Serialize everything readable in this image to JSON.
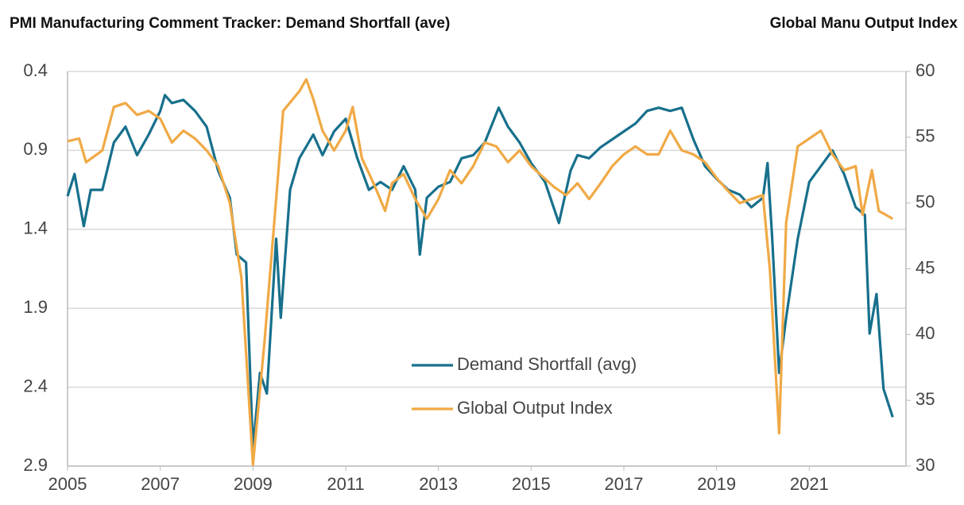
{
  "chart_data": {
    "type": "line",
    "ylabel": "PMI Manufacturing  Comment Tracker: Demand Shortfall (ave)",
    "y2label": "Global Manu  Output Index",
    "xlim": [
      2005,
      2023
    ],
    "xticks": [
      2005,
      2007,
      2009,
      2011,
      2013,
      2015,
      2017,
      2019,
      2021
    ],
    "ylim": [
      0.4,
      2.9
    ],
    "yticks": [
      0.4,
      0.9,
      1.4,
      1.9,
      2.4,
      2.9
    ],
    "y_inverted": true,
    "y2lim": [
      30,
      60
    ],
    "y2ticks": [
      30,
      35,
      40,
      45,
      50,
      55,
      60
    ],
    "grid": true,
    "legend": "lower center",
    "series": [
      {
        "name": "Demand Shortfall (avg)",
        "color": "#17708c",
        "axis": "y",
        "x": [
          2005.0,
          2005.15,
          2005.35,
          2005.5,
          2005.75,
          2006.0,
          2006.25,
          2006.5,
          2006.75,
          2007.0,
          2007.1,
          2007.25,
          2007.5,
          2007.75,
          2008.0,
          2008.25,
          2008.5,
          2008.65,
          2008.85,
          2009.0,
          2009.15,
          2009.3,
          2009.5,
          2009.6,
          2009.8,
          2010.0,
          2010.3,
          2010.5,
          2010.75,
          2011.0,
          2011.25,
          2011.5,
          2011.75,
          2012.0,
          2012.25,
          2012.5,
          2012.6,
          2012.75,
          2013.0,
          2013.25,
          2013.5,
          2013.75,
          2014.0,
          2014.3,
          2014.5,
          2014.75,
          2015.0,
          2015.3,
          2015.6,
          2015.85,
          2016.0,
          2016.25,
          2016.5,
          2016.75,
          2017.0,
          2017.25,
          2017.5,
          2017.75,
          2018.0,
          2018.25,
          2018.5,
          2018.75,
          2019.0,
          2019.25,
          2019.5,
          2019.75,
          2020.0,
          2020.1,
          2020.2,
          2020.35,
          2020.5,
          2020.75,
          2021.0,
          2021.25,
          2021.5,
          2021.75,
          2022.0,
          2022.2,
          2022.3,
          2022.45,
          2022.6,
          2022.8
        ],
        "values": [
          1.19,
          1.05,
          1.38,
          1.15,
          1.15,
          0.85,
          0.75,
          0.93,
          0.8,
          0.65,
          0.55,
          0.6,
          0.58,
          0.65,
          0.75,
          1.03,
          1.2,
          1.56,
          1.61,
          2.79,
          2.31,
          2.44,
          1.46,
          1.96,
          1.15,
          0.95,
          0.8,
          0.93,
          0.78,
          0.7,
          0.95,
          1.15,
          1.1,
          1.15,
          1.0,
          1.15,
          1.56,
          1.2,
          1.13,
          1.1,
          0.95,
          0.93,
          0.85,
          0.63,
          0.75,
          0.85,
          0.98,
          1.1,
          1.36,
          1.03,
          0.93,
          0.95,
          0.88,
          0.83,
          0.78,
          0.73,
          0.65,
          0.63,
          0.65,
          0.63,
          0.83,
          1.0,
          1.08,
          1.15,
          1.18,
          1.26,
          1.2,
          0.98,
          1.46,
          2.31,
          1.96,
          1.46,
          1.1,
          1.0,
          0.9,
          1.05,
          1.26,
          1.31,
          2.06,
          1.81,
          2.41,
          2.59
        ]
      },
      {
        "name": "Global Output Index",
        "color": "#f0a945",
        "axis": "y2",
        "x": [
          2005.0,
          2005.25,
          2005.4,
          2005.75,
          2006.0,
          2006.25,
          2006.5,
          2006.75,
          2007.0,
          2007.25,
          2007.5,
          2007.75,
          2008.0,
          2008.25,
          2008.5,
          2008.75,
          2009.0,
          2009.25,
          2009.5,
          2009.65,
          2010.0,
          2010.15,
          2010.3,
          2010.5,
          2010.75,
          2011.0,
          2011.15,
          2011.35,
          2011.6,
          2011.85,
          2012.0,
          2012.25,
          2012.5,
          2012.75,
          2013.0,
          2013.25,
          2013.5,
          2013.75,
          2014.0,
          2014.25,
          2014.5,
          2014.75,
          2015.0,
          2015.5,
          2015.75,
          2016.0,
          2016.25,
          2016.5,
          2016.75,
          2017.0,
          2017.25,
          2017.5,
          2017.75,
          2018.0,
          2018.25,
          2018.5,
          2018.75,
          2019.0,
          2019.25,
          2019.5,
          2019.75,
          2020.0,
          2020.15,
          2020.35,
          2020.5,
          2020.75,
          2021.0,
          2021.25,
          2021.5,
          2021.75,
          2022.0,
          2022.15,
          2022.35,
          2022.5,
          2022.8
        ],
        "values": [
          54.7,
          54.9,
          53.1,
          54.0,
          57.3,
          57.6,
          56.7,
          57.0,
          56.4,
          54.6,
          55.5,
          54.9,
          54.0,
          52.8,
          50.0,
          44.3,
          30.1,
          39.5,
          50.3,
          57.0,
          58.5,
          59.4,
          57.9,
          55.5,
          54.0,
          55.5,
          57.3,
          53.4,
          51.5,
          49.4,
          51.5,
          52.2,
          50.3,
          48.8,
          50.3,
          52.5,
          51.5,
          52.8,
          54.6,
          54.3,
          53.1,
          54.0,
          52.8,
          51.2,
          50.6,
          51.5,
          50.3,
          51.5,
          52.8,
          53.7,
          54.3,
          53.7,
          53.7,
          55.5,
          54.0,
          53.7,
          53.1,
          51.9,
          50.9,
          50.0,
          50.3,
          50.6,
          44.9,
          32.5,
          48.5,
          54.3,
          54.9,
          55.5,
          53.7,
          52.5,
          52.8,
          49.1,
          52.5,
          49.4,
          48.8
        ]
      }
    ]
  }
}
